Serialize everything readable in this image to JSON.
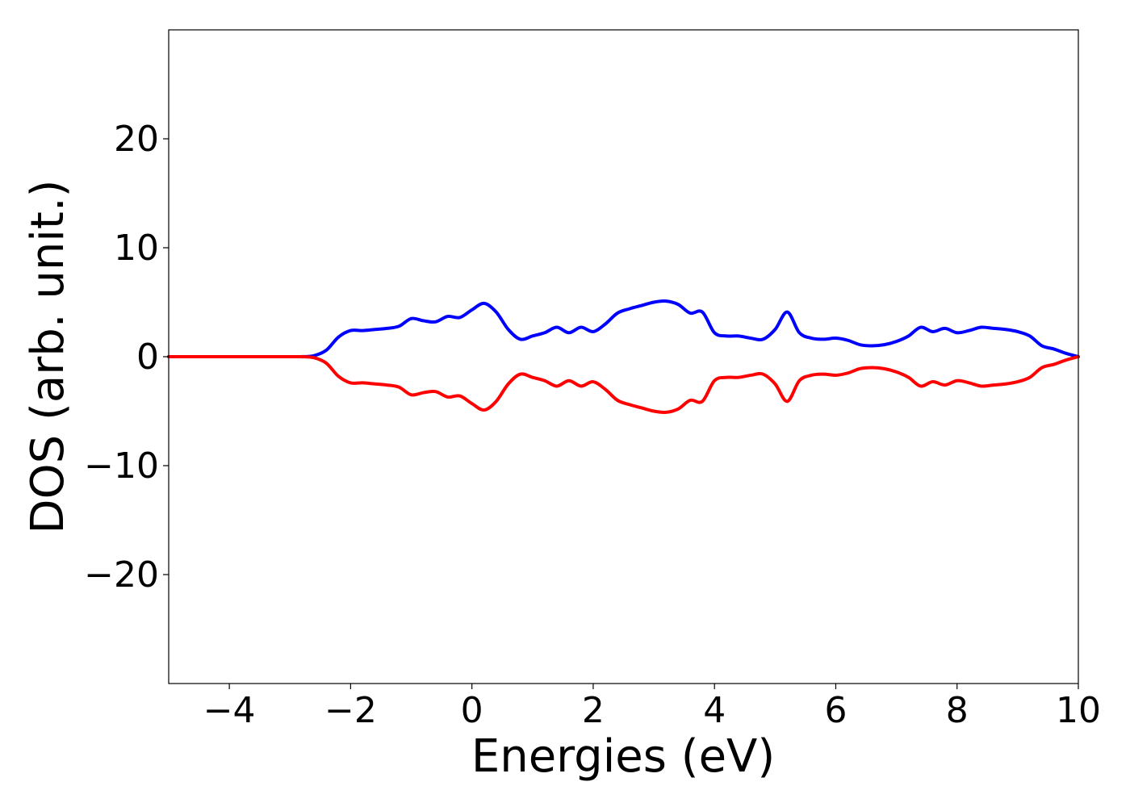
{
  "chart_data": {
    "type": "line",
    "title": "",
    "xlabel": "Energies (eV)",
    "ylabel": "DOS (arb. unit.)",
    "xlim": [
      -5,
      10
    ],
    "ylim": [
      -30,
      30
    ],
    "x_ticks": [
      -4,
      -2,
      0,
      2,
      4,
      6,
      8,
      10
    ],
    "x_tick_labels": [
      "−4",
      "−2",
      "0",
      "2",
      "4",
      "6",
      "8",
      "10"
    ],
    "y_ticks": [
      -20,
      -10,
      0,
      10,
      20
    ],
    "y_tick_labels": [
      "−20",
      "−10",
      "0",
      "10",
      "20"
    ],
    "grid": false,
    "legend": "none",
    "series": [
      {
        "color": "#0000ff",
        "x": [
          -5,
          -3.0,
          -2.8,
          -2.6,
          -2.4,
          -2.2,
          -2.0,
          -1.8,
          -1.6,
          -1.4,
          -1.2,
          -1.0,
          -0.8,
          -0.6,
          -0.4,
          -0.2,
          0.0,
          0.2,
          0.4,
          0.6,
          0.8,
          1.0,
          1.2,
          1.4,
          1.6,
          1.8,
          2.0,
          2.2,
          2.4,
          2.6,
          2.8,
          3.0,
          3.2,
          3.4,
          3.6,
          3.8,
          4.0,
          4.2,
          4.4,
          4.6,
          4.8,
          5.0,
          5.2,
          5.4,
          5.6,
          5.8,
          6.0,
          6.2,
          6.4,
          6.6,
          6.8,
          7.0,
          7.2,
          7.4,
          7.6,
          7.8,
          8.0,
          8.2,
          8.4,
          8.6,
          8.8,
          9.0,
          9.2,
          9.4,
          9.6,
          9.8,
          10.0
        ],
        "y": [
          0,
          0,
          0.0,
          0.1,
          0.6,
          1.8,
          2.4,
          2.4,
          2.5,
          2.6,
          2.8,
          3.5,
          3.3,
          3.2,
          3.7,
          3.6,
          4.3,
          4.9,
          4.1,
          2.5,
          1.6,
          1.9,
          2.2,
          2.7,
          2.2,
          2.7,
          2.3,
          3.0,
          4.0,
          4.4,
          4.7,
          5.0,
          5.1,
          4.8,
          4.0,
          4.1,
          2.2,
          1.9,
          1.9,
          1.7,
          1.6,
          2.5,
          4.1,
          2.2,
          1.7,
          1.6,
          1.7,
          1.5,
          1.1,
          1.0,
          1.1,
          1.4,
          1.9,
          2.7,
          2.3,
          2.6,
          2.2,
          2.4,
          2.7,
          2.6,
          2.5,
          2.3,
          1.9,
          1.0,
          0.7,
          0.3,
          0.0
        ]
      },
      {
        "color": "#ff0000",
        "x": [
          -5,
          -3.0,
          -2.8,
          -2.6,
          -2.4,
          -2.2,
          -2.0,
          -1.8,
          -1.6,
          -1.4,
          -1.2,
          -1.0,
          -0.8,
          -0.6,
          -0.4,
          -0.2,
          0.0,
          0.2,
          0.4,
          0.6,
          0.8,
          1.0,
          1.2,
          1.4,
          1.6,
          1.8,
          2.0,
          2.2,
          2.4,
          2.6,
          2.8,
          3.0,
          3.2,
          3.4,
          3.6,
          3.8,
          4.0,
          4.2,
          4.4,
          4.6,
          4.8,
          5.0,
          5.2,
          5.4,
          5.6,
          5.8,
          6.0,
          6.2,
          6.4,
          6.6,
          6.8,
          7.0,
          7.2,
          7.4,
          7.6,
          7.8,
          8.0,
          8.2,
          8.4,
          8.6,
          8.8,
          9.0,
          9.2,
          9.4,
          9.6,
          9.8,
          10.0
        ],
        "y": [
          0,
          0,
          0.0,
          -0.1,
          -0.6,
          -1.8,
          -2.4,
          -2.4,
          -2.5,
          -2.6,
          -2.8,
          -3.5,
          -3.3,
          -3.2,
          -3.7,
          -3.6,
          -4.3,
          -4.9,
          -4.1,
          -2.5,
          -1.6,
          -1.9,
          -2.2,
          -2.7,
          -2.2,
          -2.7,
          -2.3,
          -3.0,
          -4.0,
          -4.4,
          -4.7,
          -5.0,
          -5.1,
          -4.8,
          -4.0,
          -4.1,
          -2.2,
          -1.9,
          -1.9,
          -1.7,
          -1.6,
          -2.5,
          -4.1,
          -2.2,
          -1.7,
          -1.6,
          -1.7,
          -1.5,
          -1.1,
          -1.0,
          -1.1,
          -1.4,
          -1.9,
          -2.7,
          -2.3,
          -2.6,
          -2.2,
          -2.4,
          -2.7,
          -2.6,
          -2.5,
          -2.3,
          -1.9,
          -1.0,
          -0.7,
          -0.3,
          0.0
        ]
      }
    ]
  }
}
